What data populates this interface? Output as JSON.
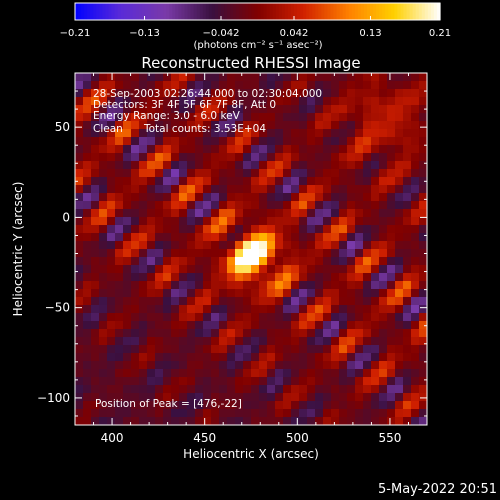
{
  "chart_data": {
    "type": "heatmap",
    "title": "Reconstructed RHESSI Image",
    "xlabel": "Heliocentric X (arcsec)",
    "ylabel": "Heliocentric Y (arcsec)",
    "xlim": [
      380,
      570
    ],
    "ylim": [
      -115,
      80
    ],
    "x_ticks": [
      "400",
      "450",
      "500",
      "550"
    ],
    "x_tick_values": [
      400,
      450,
      500,
      550
    ],
    "y_ticks": [
      "50",
      "0",
      "−50",
      "−100"
    ],
    "y_tick_values": [
      50,
      0,
      -50,
      -100
    ],
    "colorbar": {
      "min": -0.21,
      "max": 0.21,
      "ticks": [
        "−0.21",
        "−0.13",
        "−0.042",
        "0.042",
        "0.13",
        "0.21"
      ],
      "tick_values": [
        -0.21,
        -0.13,
        -0.042,
        0.042,
        0.13,
        0.21
      ],
      "units_label": "(photons cm⁻² s⁻¹ asec⁻²)"
    },
    "annotations": {
      "time_range": "28-Sep-2003 02:26:44.000 to 02:30:04.000",
      "detectors": "Detectors: 3F 4F 5F 6F 7F 8F, Att 0",
      "energy": "Energy Range: 3.0 - 6.0 keV",
      "method": "Clean",
      "total_counts": "Total counts: 3.53E+04",
      "peak": "Position of Peak = [476,-22]"
    },
    "peak": {
      "x": 476,
      "y": -22,
      "value": 0.21
    }
  },
  "footer_date": "5-May-2022 20:51",
  "colors": {
    "background": "#000000",
    "colormap": [
      "#0000ff",
      "#5a2ad8",
      "#7a3aa8",
      "#3a1040",
      "#800000",
      "#d02000",
      "#ff8000",
      "#ffd000",
      "#ffffff"
    ]
  }
}
